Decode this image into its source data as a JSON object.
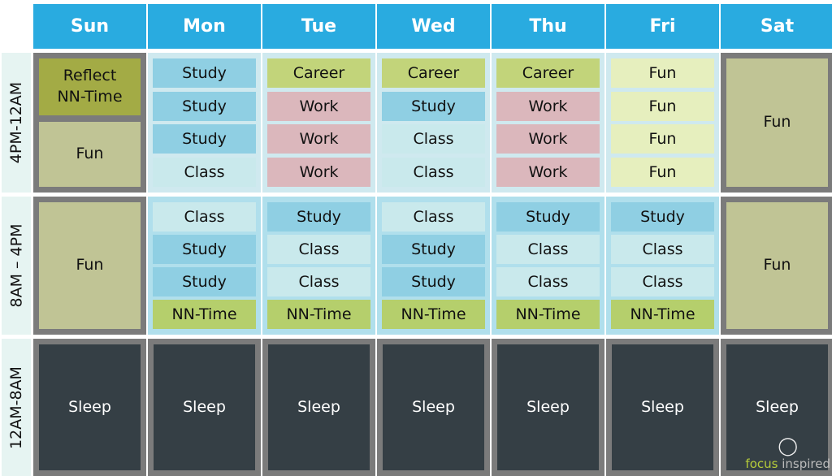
{
  "days": [
    "Sun",
    "Mon",
    "Tue",
    "Wed",
    "Thu",
    "Fri",
    "Sat"
  ],
  "bands": [
    "4PM-12AM",
    "8AM – 4PM",
    "12AM-8AM"
  ],
  "colors": {
    "header": "#29abe0",
    "study": "#8fcfe3",
    "class": "#c9e9ec",
    "career": "#c2d47a",
    "work": "#dbb7bc",
    "fun": "#e6efbe",
    "nn": "#b5cf6c",
    "reflect": "#a3ab45",
    "funblock": "#c0c495",
    "sleep": "#353f45"
  },
  "schedule": {
    "band1": {
      "Sun": [
        {
          "label": "Reflect\nNN-Time",
          "type": "reflect"
        },
        {
          "label": "Fun",
          "type": "funblock"
        }
      ],
      "Mon": [
        {
          "label": "Study",
          "type": "study"
        },
        {
          "label": "Study",
          "type": "study"
        },
        {
          "label": "Study",
          "type": "study"
        },
        {
          "label": "Class",
          "type": "class"
        }
      ],
      "Tue": [
        {
          "label": "Career",
          "type": "career"
        },
        {
          "label": "Work",
          "type": "work"
        },
        {
          "label": "Work",
          "type": "work"
        },
        {
          "label": "Work",
          "type": "work"
        }
      ],
      "Wed": [
        {
          "label": "Career",
          "type": "career"
        },
        {
          "label": "Study",
          "type": "study"
        },
        {
          "label": "Class",
          "type": "class"
        },
        {
          "label": "Class",
          "type": "class"
        }
      ],
      "Thu": [
        {
          "label": "Career",
          "type": "career"
        },
        {
          "label": "Work",
          "type": "work"
        },
        {
          "label": "Work",
          "type": "work"
        },
        {
          "label": "Work",
          "type": "work"
        }
      ],
      "Fri": [
        {
          "label": "Fun",
          "type": "fun"
        },
        {
          "label": "Fun",
          "type": "fun"
        },
        {
          "label": "Fun",
          "type": "fun"
        },
        {
          "label": "Fun",
          "type": "fun"
        }
      ],
      "Sat": [
        {
          "label": "Fun",
          "type": "funblock"
        }
      ]
    },
    "band2": {
      "Sun": [
        {
          "label": "Fun",
          "type": "funblock"
        }
      ],
      "Mon": [
        {
          "label": "Class",
          "type": "class"
        },
        {
          "label": "Study",
          "type": "study"
        },
        {
          "label": "Study",
          "type": "study"
        },
        {
          "label": "NN-Time",
          "type": "nn"
        }
      ],
      "Tue": [
        {
          "label": "Study",
          "type": "study"
        },
        {
          "label": "Class",
          "type": "class"
        },
        {
          "label": "Class",
          "type": "class"
        },
        {
          "label": "NN-Time",
          "type": "nn"
        }
      ],
      "Wed": [
        {
          "label": "Class",
          "type": "class"
        },
        {
          "label": "Study",
          "type": "study"
        },
        {
          "label": "Study",
          "type": "study"
        },
        {
          "label": "NN-Time",
          "type": "nn"
        }
      ],
      "Thu": [
        {
          "label": "Study",
          "type": "study"
        },
        {
          "label": "Class",
          "type": "class"
        },
        {
          "label": "Class",
          "type": "class"
        },
        {
          "label": "NN-Time",
          "type": "nn"
        }
      ],
      "Fri": [
        {
          "label": "Study",
          "type": "study"
        },
        {
          "label": "Class",
          "type": "class"
        },
        {
          "label": "Class",
          "type": "class"
        },
        {
          "label": "NN-Time",
          "type": "nn"
        }
      ],
      "Sat": [
        {
          "label": "Fun",
          "type": "funblock"
        }
      ]
    },
    "band3": {
      "label": "Sleep"
    }
  },
  "logo": {
    "part1": "focus",
    "part2": "inspired"
  }
}
